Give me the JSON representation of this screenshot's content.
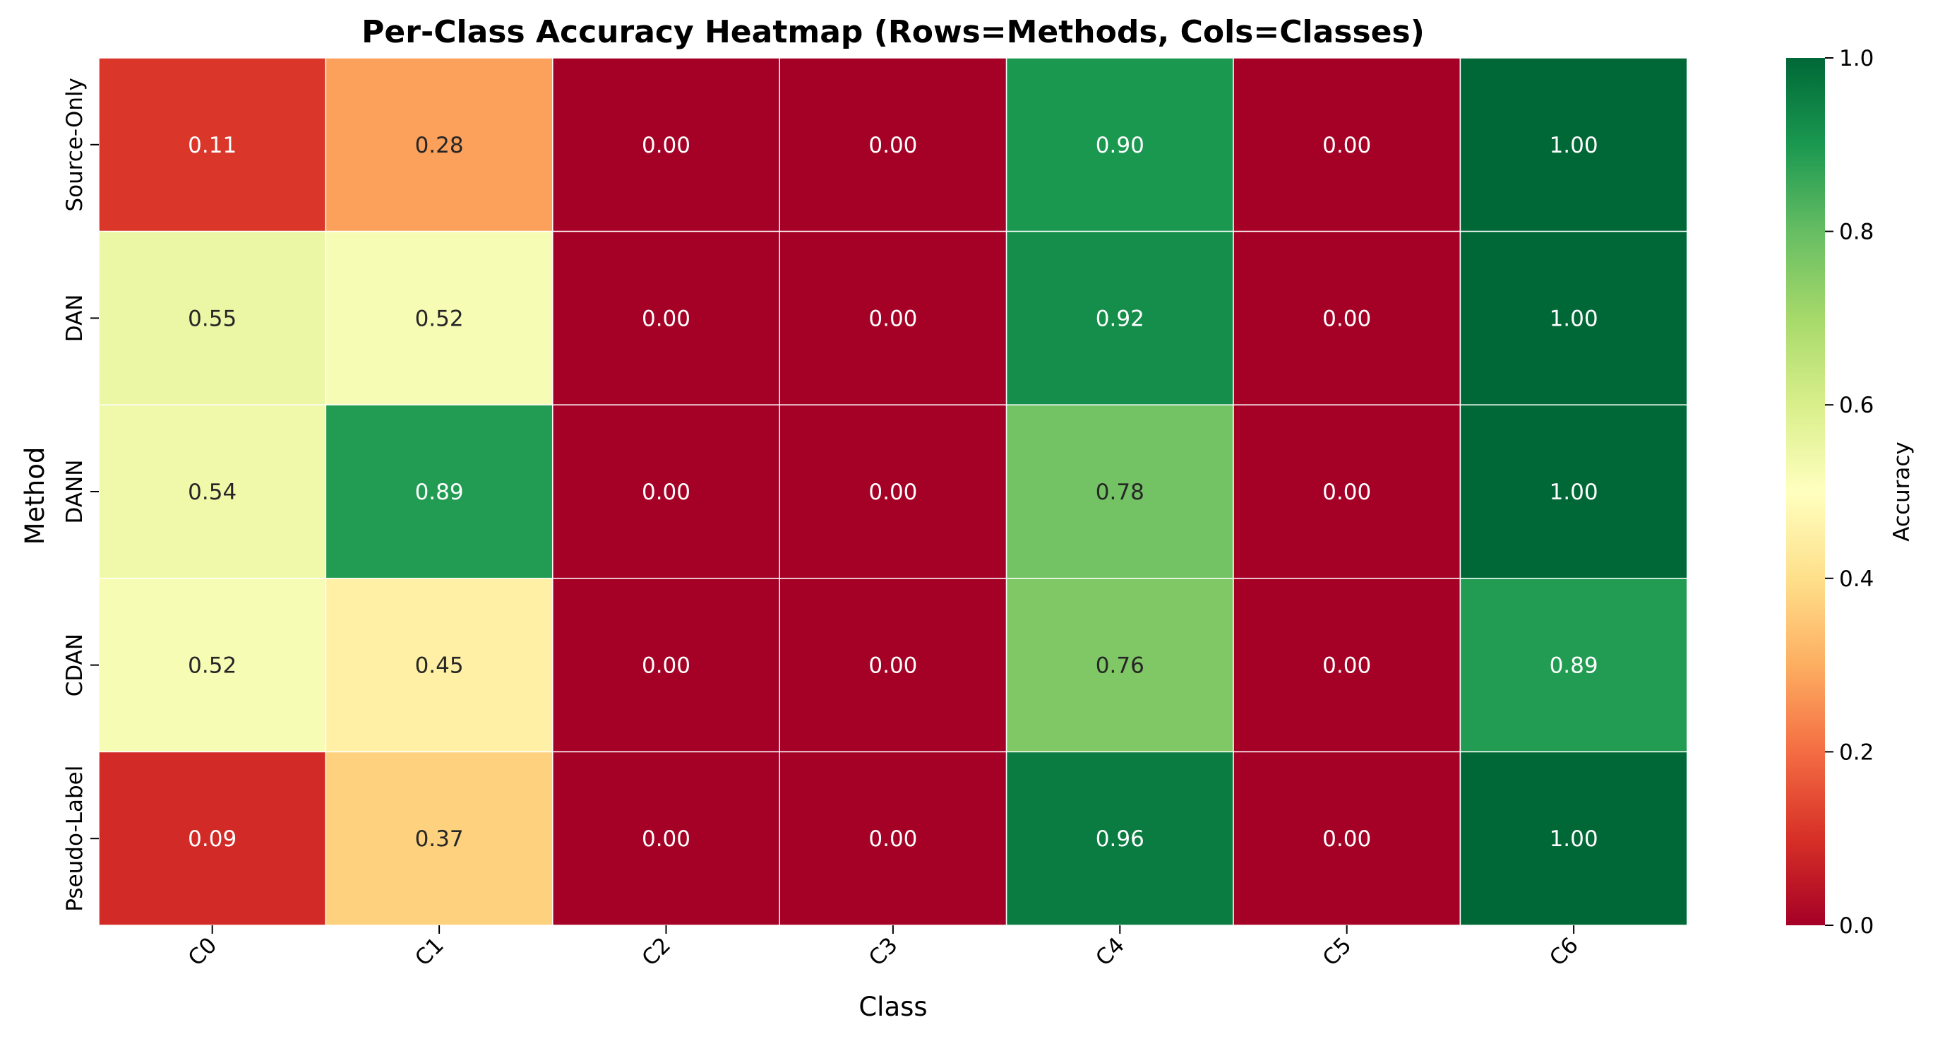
{
  "chart_data": {
    "type": "heatmap",
    "title": "Per-Class Accuracy Heatmap (Rows=Methods, Cols=Classes)",
    "xlabel": "Class",
    "ylabel": "Method",
    "rows": [
      "Source-Only",
      "DAN",
      "DANN",
      "CDAN",
      "Pseudo-Label"
    ],
    "cols": [
      "C0",
      "C1",
      "C2",
      "C3",
      "C4",
      "C5",
      "C6"
    ],
    "values": [
      [
        0.11,
        0.28,
        0.0,
        0.0,
        0.9,
        0.0,
        1.0
      ],
      [
        0.55,
        0.52,
        0.0,
        0.0,
        0.92,
        0.0,
        1.0
      ],
      [
        0.54,
        0.89,
        0.0,
        0.0,
        0.78,
        0.0,
        1.0
      ],
      [
        0.52,
        0.45,
        0.0,
        0.0,
        0.76,
        0.0,
        0.89
      ],
      [
        0.09,
        0.37,
        0.0,
        0.0,
        0.96,
        0.0,
        1.0
      ]
    ],
    "value_format": "0.00",
    "colormap": "RdYlGn",
    "vmin": 0.0,
    "vmax": 1.0,
    "colorbar": {
      "label": "Accuracy",
      "ticks": [
        "0.0",
        "0.2",
        "0.4",
        "0.6",
        "0.8",
        "1.0"
      ]
    },
    "grid": true,
    "cell_border_color": "#ffffff"
  }
}
